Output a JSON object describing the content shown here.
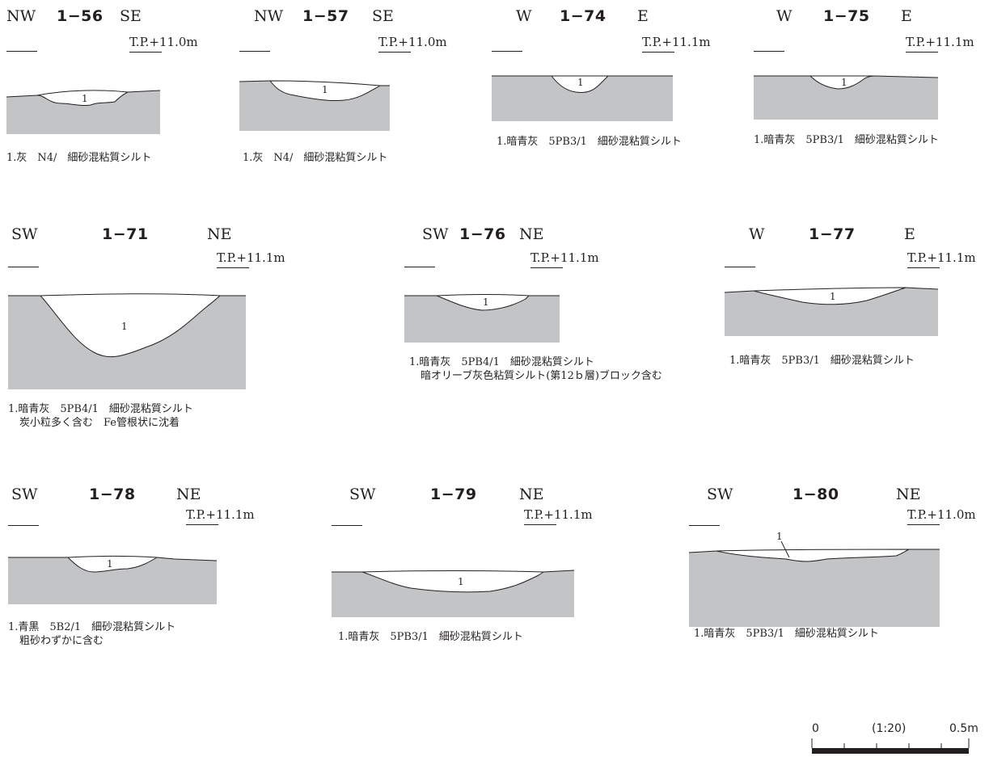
{
  "sections": [
    {
      "id": "s1",
      "left_dir": "NW",
      "feature": "1−56",
      "right_dir": "SE",
      "elevation": "T.P.+11.0m",
      "layer_label": "1",
      "description": [
        "1.灰　N4/　細砂混粘質シルト"
      ]
    },
    {
      "id": "s2",
      "left_dir": "NW",
      "feature": "1−57",
      "right_dir": "SE",
      "elevation": "T.P.+11.0m",
      "layer_label": "1",
      "description": [
        "1.灰　N4/　細砂混粘質シルト"
      ]
    },
    {
      "id": "s3",
      "left_dir": "W",
      "feature": "1−74",
      "right_dir": "E",
      "elevation": "T.P.+11.1m",
      "layer_label": "1",
      "description": [
        "1.暗青灰　5PB3/1　細砂混粘質シルト"
      ]
    },
    {
      "id": "s4",
      "left_dir": "W",
      "feature": "1−75",
      "right_dir": "E",
      "elevation": "T.P.+11.1m",
      "layer_label": "1",
      "description": [
        "1.暗青灰　5PB3/1　細砂混粘質シルト"
      ]
    },
    {
      "id": "s5",
      "left_dir": "SW",
      "feature": "1−71",
      "right_dir": "NE",
      "elevation": "T.P.+11.1m",
      "layer_label": "1",
      "description": [
        "1.暗青灰　5PB4/1　細砂混粘質シルト",
        "炭小粒多く含む　Fe管根状に沈着"
      ]
    },
    {
      "id": "s6",
      "left_dir": "SW",
      "feature": "1−76",
      "right_dir": "NE",
      "elevation": "T.P.+11.1m",
      "layer_label": "1",
      "description": [
        "1.暗青灰　5PB4/1　細砂混粘質シルト",
        "暗オリーブ灰色粘質シルト(第12ｂ層)ブロック含む"
      ]
    },
    {
      "id": "s7",
      "left_dir": "W",
      "feature": "1−77",
      "right_dir": "E",
      "elevation": "T.P.+11.1m",
      "layer_label": "1",
      "description": [
        "1.暗青灰　5PB3/1　細砂混粘質シルト"
      ]
    },
    {
      "id": "s8",
      "left_dir": "SW",
      "feature": "1−78",
      "right_dir": "NE",
      "elevation": "T.P.+11.1m",
      "layer_label": "1",
      "description": [
        "1.青黒　5B2/1　細砂混粘質シルト",
        "粗砂わずかに含む"
      ]
    },
    {
      "id": "s9",
      "left_dir": "SW",
      "feature": "1−79",
      "right_dir": "NE",
      "elevation": "T.P.+11.1m",
      "layer_label": "1",
      "description": [
        "1.暗青灰　5PB3/1　細砂混粘質シルト"
      ]
    },
    {
      "id": "s10",
      "left_dir": "SW",
      "feature": "1−80",
      "right_dir": "NE",
      "elevation": "T.P.+11.0m",
      "layer_label": "1",
      "description": [
        "1.暗青灰　5PB3/1　細砂混粘質シルト"
      ]
    }
  ],
  "scale": {
    "start": "0",
    "ratio": "(1:20)",
    "end": "0.5m"
  },
  "colors": {
    "soil": "#c3c4c6",
    "fill": "#ffffff",
    "ink": "#231f20"
  }
}
